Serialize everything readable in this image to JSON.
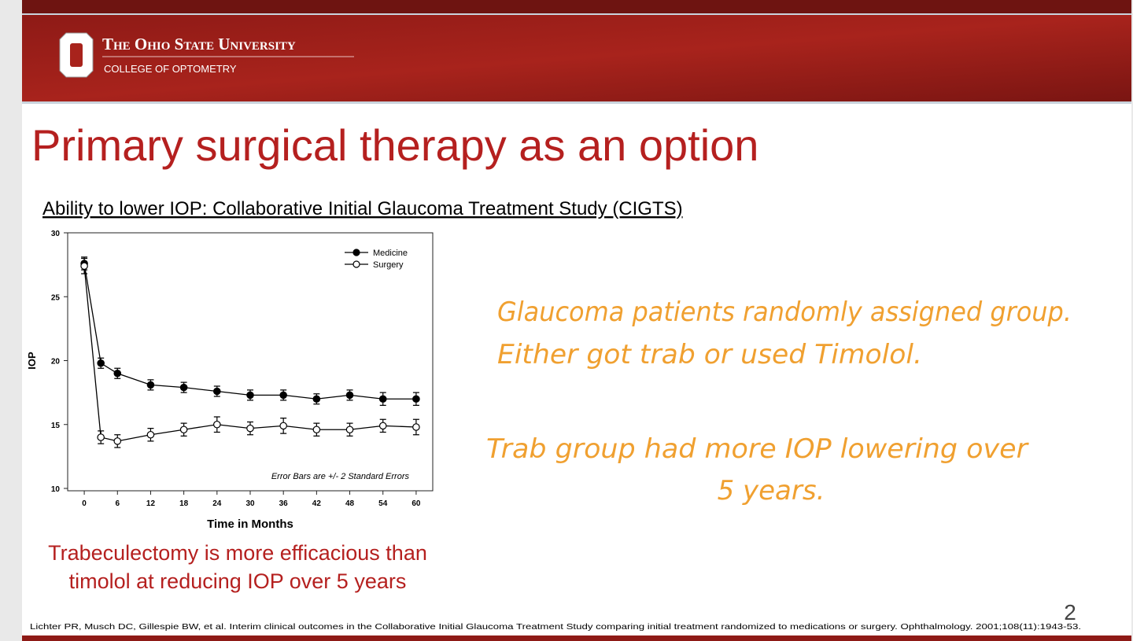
{
  "header": {
    "university": "The Ohio State University",
    "college": "COLLEGE OF OPTOMETRY"
  },
  "title": "Primary surgical therapy as an option",
  "subtitle": "Ability to lower IOP: Collaborative Initial Glaucoma Treatment Study (CIGTS)",
  "chart_data": {
    "type": "line",
    "x": [
      0,
      3,
      6,
      12,
      18,
      24,
      30,
      36,
      42,
      48,
      54,
      60
    ],
    "xlim": [
      -3,
      63
    ],
    "xticks": [
      0,
      6,
      12,
      18,
      24,
      30,
      36,
      42,
      48,
      54,
      60
    ],
    "ylim": [
      10,
      30
    ],
    "yticks": [
      10,
      15,
      20,
      25,
      30
    ],
    "x_label": "Time in Months",
    "y_label": "IOP",
    "annotation": "Error Bars are +/- 2 Standard Errors",
    "legend": "upper right",
    "series": [
      {
        "name": "Medicine",
        "color": "#000000",
        "marker_fill": "#000000",
        "values": [
          27.6,
          19.8,
          19.0,
          18.1,
          17.9,
          17.6,
          17.3,
          17.3,
          17.0,
          17.3,
          17.0,
          17.0
        ],
        "errors": [
          0.5,
          0.4,
          0.4,
          0.4,
          0.4,
          0.4,
          0.4,
          0.4,
          0.4,
          0.4,
          0.5,
          0.5
        ]
      },
      {
        "name": "Surgery",
        "color": "#000000",
        "marker_fill": "#ffffff",
        "values": [
          27.4,
          14.0,
          13.7,
          14.2,
          14.6,
          15.0,
          14.7,
          14.9,
          14.6,
          14.6,
          14.9,
          14.8
        ],
        "errors": [
          0.6,
          0.5,
          0.5,
          0.5,
          0.5,
          0.6,
          0.5,
          0.6,
          0.5,
          0.5,
          0.5,
          0.6
        ]
      }
    ]
  },
  "caption": [
    "Trabeculectomy is more efficacious than",
    "timolol at reducing IOP over 5 years"
  ],
  "notes": [
    [
      "Glaucoma patients randomly assigned group.",
      "Either got trab or used Timolol."
    ],
    [
      "Trab group had more IOP lowering over",
      "5 years."
    ]
  ],
  "citation": "Lichter PR, Musch DC, Gillespie BW, et al. Interim clinical outcomes in the Collaborative Initial Glaucoma Treatment Study comparing initial treatment randomized to medications or surgery. Ophthalmology. 2001;108(11):1943-53.",
  "page_number": "2"
}
